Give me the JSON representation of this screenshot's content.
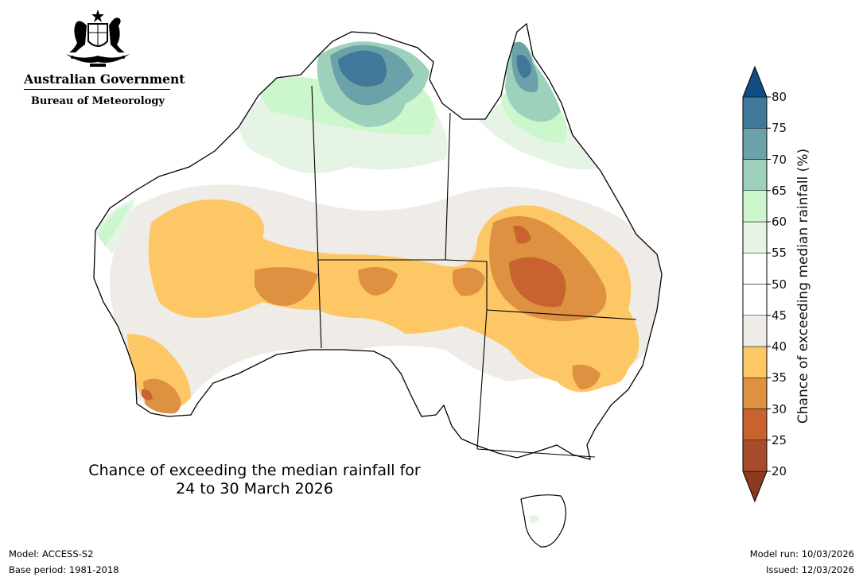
{
  "header": {
    "government_name": "Australian Government",
    "agency_name": "Bureau of Meteorology",
    "logo_icon": "coat-of-arms-icon"
  },
  "map": {
    "title_line1": "Chance of exceeding the median rainfall for",
    "title_line2": "24 to 30 March 2026",
    "region": "Australia",
    "outline_color": "#000000"
  },
  "colorbar": {
    "label": "Chance of exceeding median rainfall (%)",
    "ticks": [
      "20",
      "25",
      "30",
      "35",
      "40",
      "45",
      "50",
      "55",
      "60",
      "65",
      "70",
      "75",
      "80"
    ],
    "bands": [
      {
        "range": "below 20",
        "color": "#8b3a20"
      },
      {
        "range": "20-25",
        "color": "#a84b2a"
      },
      {
        "range": "25-30",
        "color": "#c8622f"
      },
      {
        "range": "30-35",
        "color": "#de9140"
      },
      {
        "range": "35-40",
        "color": "#fdc766"
      },
      {
        "range": "40-45",
        "color": "#efebe6"
      },
      {
        "range": "45-50",
        "color": "#ffffff"
      },
      {
        "range": "50-55",
        "color": "#ffffff"
      },
      {
        "range": "55-60",
        "color": "#e6f4e6"
      },
      {
        "range": "60-65",
        "color": "#ccf7cc"
      },
      {
        "range": "65-70",
        "color": "#9dd1bb"
      },
      {
        "range": "70-75",
        "color": "#6ba2a9"
      },
      {
        "range": "75-80",
        "color": "#3f7899"
      },
      {
        "range": "above 80",
        "color": "#124c84"
      }
    ]
  },
  "footer": {
    "model": "Model: ACCESS-S2",
    "base_period": "Base period: 1981-2018",
    "model_run": "Model run: 10/03/2026",
    "issued": "Issued: 12/03/2026"
  }
}
